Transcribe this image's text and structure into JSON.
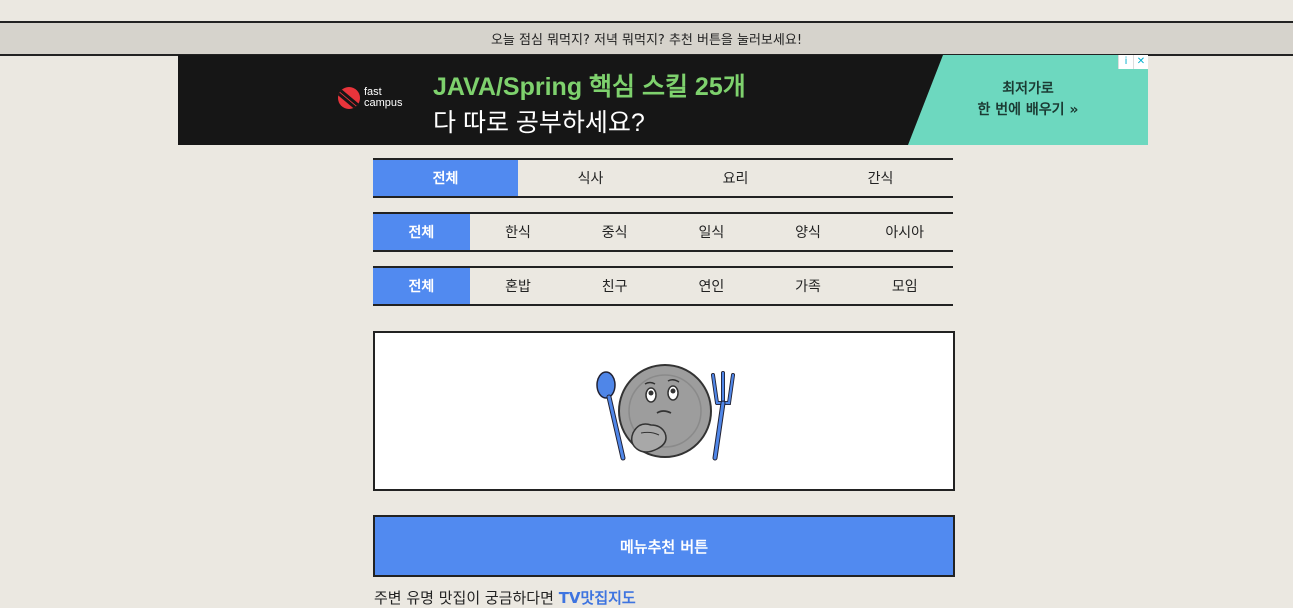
{
  "header": {
    "banner_text": "오늘 점심 뭐먹지? 저녁 뭐먹지? 추천 버튼을 눌러보세요!"
  },
  "ad": {
    "logo_line1": "fast",
    "logo_line2": "campus",
    "headline": "JAVA/Spring 핵심 스킬 25개",
    "subline": "다 따로 공부하세요?",
    "cta_line1": "최저가로",
    "cta_line2": "한 번에 배우기 »",
    "info_icon": "i",
    "close_icon": "✕"
  },
  "tabs_meal": [
    {
      "label": "전체",
      "active": true
    },
    {
      "label": "식사",
      "active": false
    },
    {
      "label": "요리",
      "active": false
    },
    {
      "label": "간식",
      "active": false
    }
  ],
  "tabs_cuisine": [
    {
      "label": "전체",
      "active": true
    },
    {
      "label": "한식",
      "active": false
    },
    {
      "label": "중식",
      "active": false
    },
    {
      "label": "일식",
      "active": false
    },
    {
      "label": "양식",
      "active": false
    },
    {
      "label": "아시아",
      "active": false
    }
  ],
  "tabs_company": [
    {
      "label": "전체",
      "active": true
    },
    {
      "label": "혼밥",
      "active": false
    },
    {
      "label": "친구",
      "active": false
    },
    {
      "label": "연인",
      "active": false
    },
    {
      "label": "가족",
      "active": false
    },
    {
      "label": "모임",
      "active": false
    }
  ],
  "main": {
    "image_icon": "thinking-plate-icon",
    "button_label": "메뉴추천 버튼",
    "footer_prefix": "주변 유명 맛집이 궁금하다면 ",
    "footer_link": "TV맛집지도"
  },
  "colors": {
    "accent": "#518af0",
    "background": "#ebe8e1",
    "ad_green": "#7ed16d",
    "ad_cta": "#6dd8bf"
  }
}
